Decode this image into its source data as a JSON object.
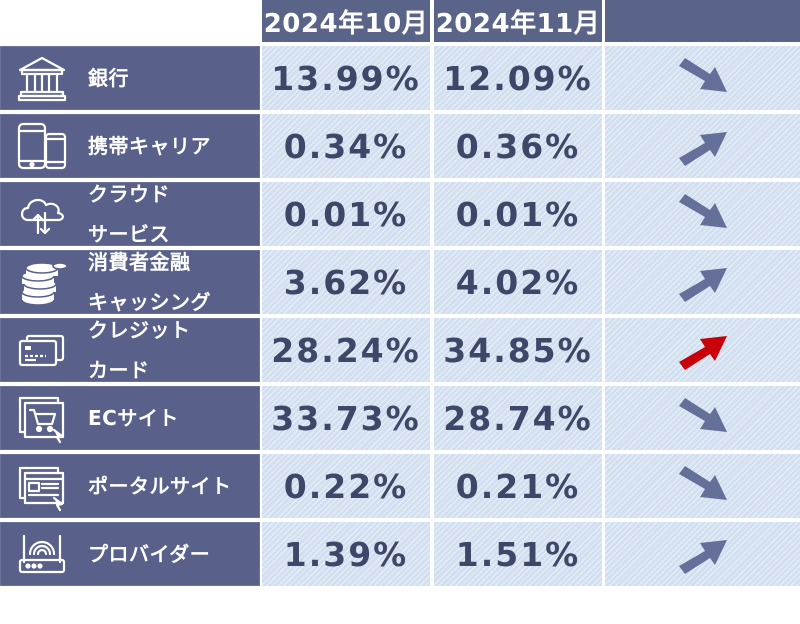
{
  "columns": [
    "2024年10月",
    "2024年11月",
    ""
  ],
  "colors": {
    "header_bg": "#5a6488",
    "label_bg": "#59618a",
    "cell_bg": "#d2dff0",
    "value_text": "#3f4768",
    "arrow": "#646f9a",
    "arrow_highlight": "#c8000a"
  },
  "rows": [
    {
      "label_lines": [
        "銀行"
      ],
      "icon": "bank-icon",
      "oct": "13.99%",
      "nov": "12.09%",
      "trend": "down"
    },
    {
      "label_lines": [
        "携帯キャリア"
      ],
      "icon": "mobile-devices-icon",
      "oct": "0.34%",
      "nov": "0.36%",
      "trend": "up"
    },
    {
      "label_lines": [
        "クラウド",
        "サービス"
      ],
      "icon": "cloud-sync-icon",
      "oct": "0.01%",
      "nov": "0.01%",
      "trend": "down"
    },
    {
      "label_lines": [
        "消費者金融",
        "キャッシング"
      ],
      "icon": "coin-stack-icon",
      "oct": "3.62%",
      "nov": "4.02%",
      "trend": "up"
    },
    {
      "label_lines": [
        "クレジット",
        "カード"
      ],
      "icon": "credit-card-icon",
      "oct": "28.24%",
      "nov": "34.85%",
      "trend": "up",
      "highlight": true
    },
    {
      "label_lines": [
        "ECサイト"
      ],
      "icon": "shopping-cart-screen-icon",
      "oct": "33.73%",
      "nov": "28.74%",
      "trend": "down"
    },
    {
      "label_lines": [
        "ポータルサイト"
      ],
      "icon": "web-portal-icon",
      "oct": "0.22%",
      "nov": "0.21%",
      "trend": "down"
    },
    {
      "label_lines": [
        "プロバイダー"
      ],
      "icon": "wifi-router-icon",
      "oct": "1.39%",
      "nov": "1.51%",
      "trend": "up"
    }
  ]
}
